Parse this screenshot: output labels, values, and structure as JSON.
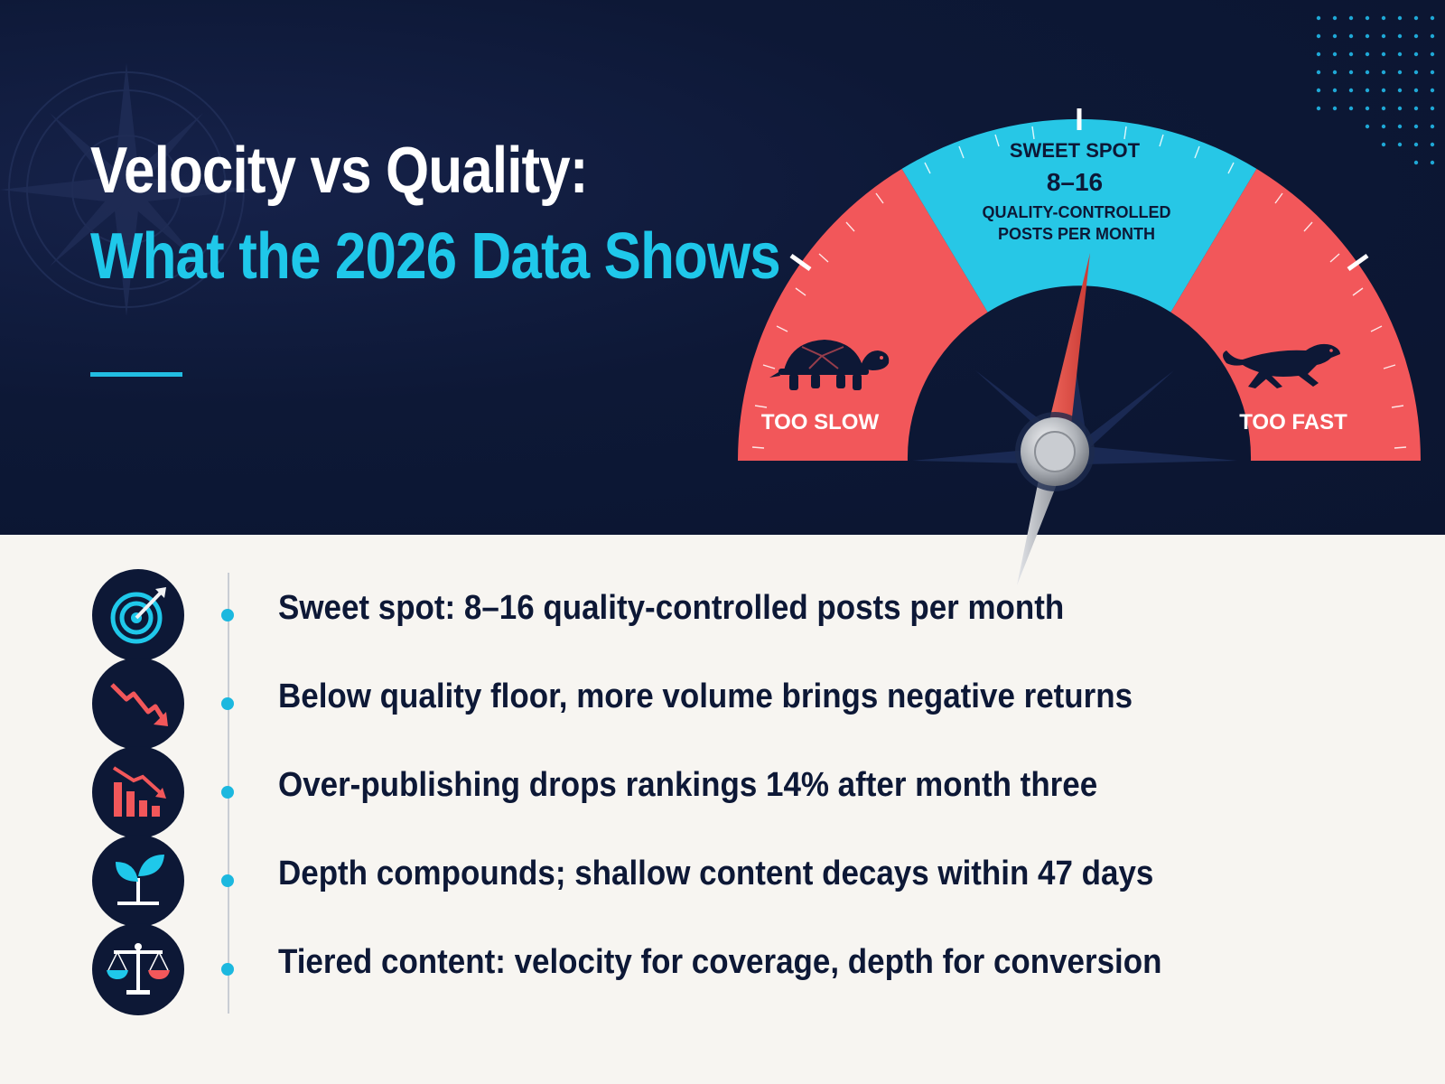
{
  "title": {
    "line1": "Velocity vs Quality:",
    "line2": "What the 2026 Data Shows"
  },
  "gauge": {
    "sweet_spot_label": "SWEET SPOT",
    "sweet_spot_range": "8–16",
    "sweet_spot_line1": "QUALITY-CONTROLLED",
    "sweet_spot_line2": "POSTS PER MONTH",
    "left_label": "TOO SLOW",
    "right_label": "TOO FAST",
    "left_icon": "turtle-icon",
    "right_icon": "cheetah-icon",
    "colors": {
      "too_slow": "#f2575a",
      "sweet_spot": "#27c7e6",
      "too_fast": "#f2575a",
      "needle": "#e8463f"
    }
  },
  "items": [
    {
      "icon": "target-icon",
      "text": "Sweet spot: 8–16 quality-controlled posts per month"
    },
    {
      "icon": "trend-down-icon",
      "text": "Below quality floor, more volume brings negative returns"
    },
    {
      "icon": "bar-chart-down-icon",
      "text": "Over-publishing drops rankings 14% after month three"
    },
    {
      "icon": "sprout-icon",
      "text": "Depth compounds; shallow content decays within 47 days"
    },
    {
      "icon": "balance-scale-icon",
      "text": "Tiered content: velocity for coverage, depth for conversion"
    }
  ],
  "colors": {
    "navy": "#0d1836",
    "accent": "#1fc8ea",
    "red": "#f2575a",
    "background": "#f7f5f1"
  }
}
